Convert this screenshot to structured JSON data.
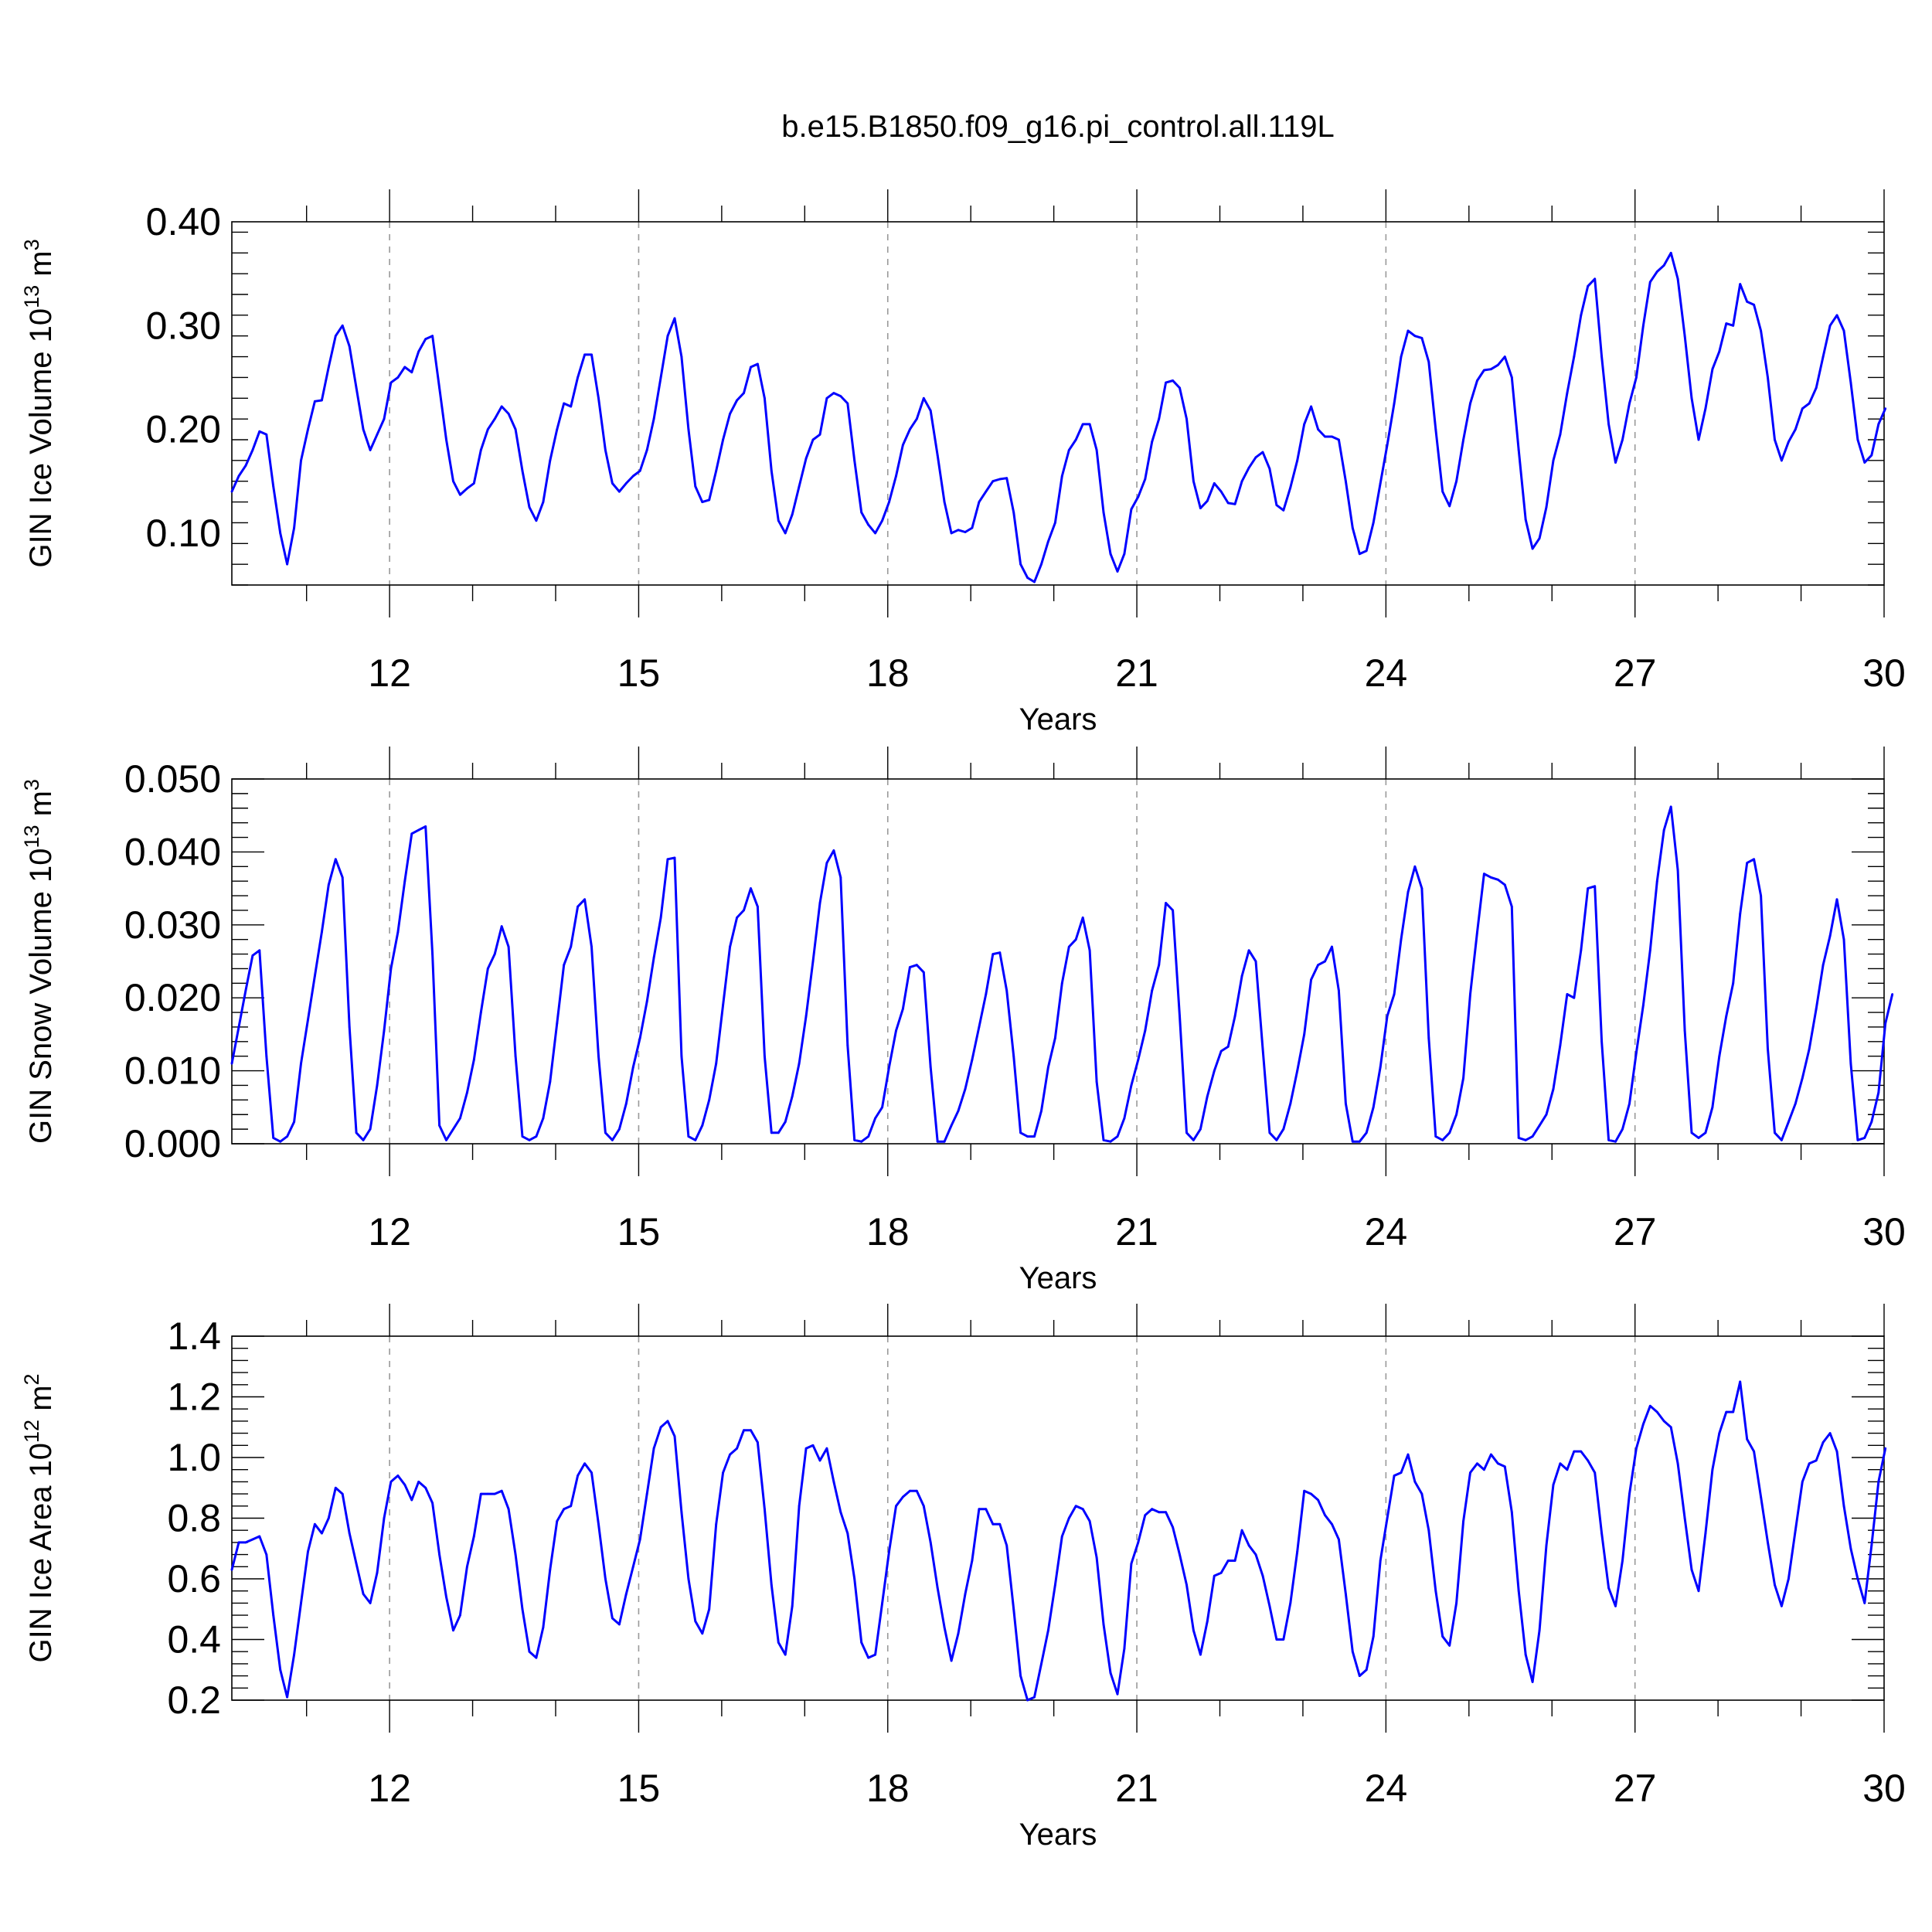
{
  "figure": {
    "title": "b.e15.B1850.f09_g16.pi_control.all.119L"
  },
  "chart_data": [
    {
      "type": "line",
      "xlabel": "Years",
      "ylabel": "GIN Ice Volume 10",
      "ylabel_exp": "13",
      "ylabel_unit": " m",
      "ylabel_unit_exp": "3",
      "xlim": [
        10.1,
        30
      ],
      "ylim": [
        0.05,
        0.4
      ],
      "xticks": [
        12,
        15,
        18,
        21,
        24,
        27,
        30
      ],
      "xtick_labels": [
        "12",
        "15",
        "18",
        "21",
        "24",
        "27",
        "30"
      ],
      "yticks": [
        0.1,
        0.2,
        0.3,
        0.4
      ],
      "ytick_labels": [
        "0.10",
        "0.20",
        "0.30",
        "0.40"
      ],
      "ymajor_step": 0.1,
      "yminor_step": 0.02,
      "grid": "dashed vertical at x major ticks",
      "series": [
        {
          "color": "#0000ff",
          "x0": 10.1,
          "dx": 0.08333,
          "values": [
            0.14,
            0.155,
            0.165,
            0.18,
            0.198,
            0.195,
            0.145,
            0.1,
            0.07,
            0.105,
            0.17,
            0.2,
            0.227,
            0.228,
            0.26,
            0.29,
            0.3,
            0.28,
            0.24,
            0.2,
            0.18,
            0.195,
            0.21,
            0.245,
            0.25,
            0.26,
            0.255,
            0.275,
            0.287,
            0.29,
            0.24,
            0.19,
            0.15,
            0.137,
            0.143,
            0.148,
            0.18,
            0.2,
            0.21,
            0.222,
            0.215,
            0.2,
            0.16,
            0.125,
            0.112,
            0.13,
            0.17,
            0.2,
            0.225,
            0.222,
            0.25,
            0.272,
            0.272,
            0.23,
            0.18,
            0.148,
            0.14,
            0.148,
            0.155,
            0.16,
            0.18,
            0.21,
            0.25,
            0.29,
            0.307,
            0.27,
            0.2,
            0.145,
            0.13,
            0.132,
            0.16,
            0.19,
            0.215,
            0.228,
            0.235,
            0.26,
            0.263,
            0.23,
            0.16,
            0.112,
            0.1,
            0.118,
            0.145,
            0.172,
            0.19,
            0.195,
            0.23,
            0.235,
            0.232,
            0.225,
            0.17,
            0.12,
            0.108,
            0.1,
            0.112,
            0.13,
            0.155,
            0.185,
            0.2,
            0.21,
            0.23,
            0.218,
            0.175,
            0.13,
            0.1,
            0.103,
            0.101,
            0.105,
            0.13,
            0.14,
            0.15,
            0.152,
            0.153,
            0.12,
            0.07,
            0.057,
            0.053,
            0.07,
            0.092,
            0.11,
            0.155,
            0.18,
            0.19,
            0.205,
            0.205,
            0.18,
            0.12,
            0.08,
            0.063,
            0.08,
            0.123,
            0.135,
            0.152,
            0.188,
            0.21,
            0.245,
            0.247,
            0.24,
            0.21,
            0.15,
            0.124,
            0.131,
            0.148,
            0.14,
            0.129,
            0.128,
            0.15,
            0.163,
            0.173,
            0.178,
            0.162,
            0.127,
            0.122,
            0.144,
            0.17,
            0.205,
            0.222,
            0.2,
            0.193,
            0.193,
            0.19,
            0.15,
            0.105,
            0.08,
            0.083,
            0.11,
            0.148,
            0.185,
            0.225,
            0.27,
            0.295,
            0.29,
            0.288,
            0.265,
            0.2,
            0.14,
            0.126,
            0.15,
            0.19,
            0.225,
            0.247,
            0.257,
            0.258,
            0.262,
            0.27,
            0.25,
            0.18,
            0.113,
            0.085,
            0.095,
            0.125,
            0.17,
            0.195,
            0.235,
            0.27,
            0.31,
            0.338,
            0.345,
            0.27,
            0.205,
            0.168,
            0.19,
            0.225,
            0.25,
            0.3,
            0.342,
            0.352,
            0.358,
            0.37,
            0.345,
            0.29,
            0.23,
            0.19,
            0.22,
            0.258,
            0.275,
            0.302,
            0.3,
            0.34,
            0.323,
            0.32,
            0.295,
            0.25,
            0.19,
            0.17,
            0.188,
            0.2,
            0.22,
            0.225,
            0.24,
            0.27,
            0.3,
            0.31,
            0.295,
            0.245,
            0.19,
            0.168,
            0.175,
            0.205,
            0.22
          ]
        }
      ]
    },
    {
      "type": "line",
      "xlabel": "Years",
      "ylabel": "GIN Snow Volume 10",
      "ylabel_exp": "13",
      "ylabel_unit": " m",
      "ylabel_unit_exp": "3",
      "xlim": [
        10.1,
        30
      ],
      "ylim": [
        0.0,
        0.05
      ],
      "xticks": [
        12,
        15,
        18,
        21,
        24,
        27,
        30
      ],
      "xtick_labels": [
        "12",
        "15",
        "18",
        "21",
        "24",
        "27",
        "30"
      ],
      "yticks": [
        0.0,
        0.01,
        0.02,
        0.03,
        0.04,
        0.05
      ],
      "ytick_labels": [
        "0.000",
        "0.010",
        "0.020",
        "0.030",
        "0.040",
        "0.050"
      ],
      "ymajor_step": 0.01,
      "yminor_step": 0.002,
      "grid": "dashed vertical at x major ticks",
      "series": [
        {
          "color": "#0000ff",
          "x0": 10.1,
          "dx": 0.08333,
          "values": [
            0.011,
            0.016,
            0.021,
            0.0258,
            0.0265,
            0.012,
            0.0008,
            0.0003,
            0.001,
            0.003,
            0.011,
            0.017,
            0.023,
            0.029,
            0.0355,
            0.039,
            0.0365,
            0.016,
            0.0015,
            0.0005,
            0.002,
            0.008,
            0.0155,
            0.024,
            0.029,
            0.036,
            0.0425,
            0.043,
            0.0435,
            0.026,
            0.0025,
            0.0005,
            0.002,
            0.0035,
            0.007,
            0.0115,
            0.018,
            0.024,
            0.026,
            0.0298,
            0.027,
            0.012,
            0.001,
            0.0005,
            0.001,
            0.0035,
            0.0085,
            0.0165,
            0.0245,
            0.027,
            0.0325,
            0.0335,
            0.027,
            0.012,
            0.0015,
            0.0005,
            0.002,
            0.0055,
            0.0105,
            0.0145,
            0.0195,
            0.0255,
            0.031,
            0.039,
            0.0392,
            0.012,
            0.001,
            0.0005,
            0.0025,
            0.006,
            0.011,
            0.019,
            0.027,
            0.031,
            0.032,
            0.035,
            0.0325,
            0.012,
            0.0015,
            0.0015,
            0.003,
            0.0065,
            0.011,
            0.0175,
            0.025,
            0.033,
            0.0385,
            0.0402,
            0.0365,
            0.0135,
            0.0005,
            0.0003,
            0.001,
            0.0035,
            0.005,
            0.0105,
            0.0155,
            0.0185,
            0.0242,
            0.0245,
            0.0235,
            0.0105,
            0.0003,
            0.0003,
            0.0025,
            0.0045,
            0.0075,
            0.0115,
            0.016,
            0.0205,
            0.026,
            0.0262,
            0.021,
            0.012,
            0.0015,
            0.001,
            0.001,
            0.0045,
            0.0105,
            0.0145,
            0.022,
            0.027,
            0.028,
            0.031,
            0.0265,
            0.0085,
            0.0005,
            0.0003,
            0.001,
            0.0035,
            0.008,
            0.0115,
            0.0155,
            0.021,
            0.0245,
            0.033,
            0.032,
            0.0175,
            0.0015,
            0.0005,
            0.002,
            0.0065,
            0.01,
            0.0127,
            0.0133,
            0.0175,
            0.023,
            0.0265,
            0.025,
            0.013,
            0.0015,
            0.0005,
            0.002,
            0.0055,
            0.01,
            0.015,
            0.0225,
            0.0245,
            0.025,
            0.027,
            0.021,
            0.0055,
            0.0003,
            0.0003,
            0.0015,
            0.005,
            0.0105,
            0.0175,
            0.0205,
            0.028,
            0.0345,
            0.038,
            0.035,
            0.0145,
            0.001,
            0.0005,
            0.0015,
            0.004,
            0.009,
            0.0205,
            0.029,
            0.037,
            0.0365,
            0.0362,
            0.0355,
            0.0325,
            0.0008,
            0.0005,
            0.001,
            0.0025,
            0.004,
            0.0075,
            0.0135,
            0.0205,
            0.02,
            0.0265,
            0.035,
            0.0353,
            0.014,
            0.0005,
            0.0003,
            0.002,
            0.0055,
            0.0125,
            0.019,
            0.0265,
            0.036,
            0.043,
            0.0462,
            0.0375,
            0.0155,
            0.0015,
            0.0008,
            0.0015,
            0.005,
            0.012,
            0.0175,
            0.022,
            0.0315,
            0.0385,
            0.039,
            0.034,
            0.013,
            0.0015,
            0.0005,
            0.003,
            0.0055,
            0.009,
            0.013,
            0.0185,
            0.0245,
            0.0285,
            0.0335,
            0.028,
            0.011,
            0.0005,
            0.0008,
            0.003,
            0.007,
            0.0165,
            0.0205
          ]
        }
      ]
    },
    {
      "type": "line",
      "xlabel": "Years",
      "ylabel": "GIN Ice Area 10",
      "ylabel_exp": "12",
      "ylabel_unit": " m",
      "ylabel_unit_exp": "2",
      "xlim": [
        10.1,
        30
      ],
      "ylim": [
        0.2,
        1.4
      ],
      "xticks": [
        12,
        15,
        18,
        21,
        24,
        27,
        30
      ],
      "xtick_labels": [
        "12",
        "15",
        "18",
        "21",
        "24",
        "27",
        "30"
      ],
      "yticks": [
        0.2,
        0.4,
        0.6,
        0.8,
        1.0,
        1.2,
        1.4
      ],
      "ytick_labels": [
        "0.2",
        "0.4",
        "0.6",
        "0.8",
        "1.0",
        "1.2",
        "1.4"
      ],
      "ymajor_step": 0.2,
      "yminor_step": 0.04,
      "grid": "dashed vertical at x major ticks",
      "series": [
        {
          "color": "#0000ff",
          "x0": 10.1,
          "dx": 0.08333,
          "values": [
            0.63,
            0.72,
            0.72,
            0.73,
            0.74,
            0.68,
            0.48,
            0.3,
            0.21,
            0.35,
            0.52,
            0.69,
            0.78,
            0.75,
            0.8,
            0.9,
            0.88,
            0.75,
            0.65,
            0.55,
            0.52,
            0.62,
            0.8,
            0.92,
            0.94,
            0.91,
            0.86,
            0.92,
            0.9,
            0.85,
            0.68,
            0.54,
            0.43,
            0.48,
            0.64,
            0.74,
            0.88,
            0.88,
            0.88,
            0.89,
            0.83,
            0.68,
            0.5,
            0.36,
            0.34,
            0.44,
            0.63,
            0.79,
            0.83,
            0.84,
            0.94,
            0.98,
            0.95,
            0.78,
            0.6,
            0.47,
            0.45,
            0.55,
            0.64,
            0.73,
            0.88,
            1.03,
            1.1,
            1.12,
            1.07,
            0.82,
            0.6,
            0.46,
            0.42,
            0.5,
            0.78,
            0.95,
            1.01,
            1.03,
            1.09,
            1.09,
            1.05,
            0.83,
            0.58,
            0.39,
            0.35,
            0.51,
            0.84,
            1.03,
            1.04,
            0.99,
            1.03,
            0.92,
            0.82,
            0.75,
            0.6,
            0.39,
            0.34,
            0.35,
            0.52,
            0.69,
            0.84,
            0.87,
            0.89,
            0.89,
            0.84,
            0.72,
            0.57,
            0.44,
            0.33,
            0.42,
            0.55,
            0.66,
            0.83,
            0.83,
            0.78,
            0.78,
            0.71,
            0.5,
            0.28,
            0.2,
            0.21,
            0.32,
            0.43,
            0.58,
            0.74,
            0.8,
            0.84,
            0.83,
            0.79,
            0.67,
            0.45,
            0.29,
            0.22,
            0.37,
            0.65,
            0.72,
            0.81,
            0.83,
            0.82,
            0.82,
            0.77,
            0.68,
            0.58,
            0.43,
            0.35,
            0.46,
            0.61,
            0.62,
            0.66,
            0.66,
            0.76,
            0.71,
            0.68,
            0.61,
            0.51,
            0.4,
            0.4,
            0.52,
            0.69,
            0.89,
            0.88,
            0.86,
            0.81,
            0.78,
            0.73,
            0.55,
            0.36,
            0.28,
            0.3,
            0.41,
            0.66,
            0.8,
            0.94,
            0.95,
            1.01,
            0.92,
            0.88,
            0.76,
            0.56,
            0.41,
            0.38,
            0.52,
            0.79,
            0.95,
            0.98,
            0.96,
            1.01,
            0.98,
            0.97,
            0.82,
            0.56,
            0.35,
            0.26,
            0.43,
            0.71,
            0.91,
            0.98,
            0.96,
            1.02,
            1.02,
            0.99,
            0.95,
            0.75,
            0.57,
            0.51,
            0.66,
            0.88,
            1.03,
            1.11,
            1.17,
            1.15,
            1.12,
            1.1,
            0.98,
            0.8,
            0.63,
            0.56,
            0.75,
            0.96,
            1.08,
            1.15,
            1.15,
            1.25,
            1.06,
            1.02,
            0.87,
            0.72,
            0.58,
            0.51,
            0.6,
            0.76,
            0.92,
            0.98,
            0.99,
            1.05,
            1.08,
            1.02,
            0.84,
            0.7,
            0.6,
            0.52,
            0.71,
            0.92,
            1.03
          ]
        }
      ]
    }
  ]
}
